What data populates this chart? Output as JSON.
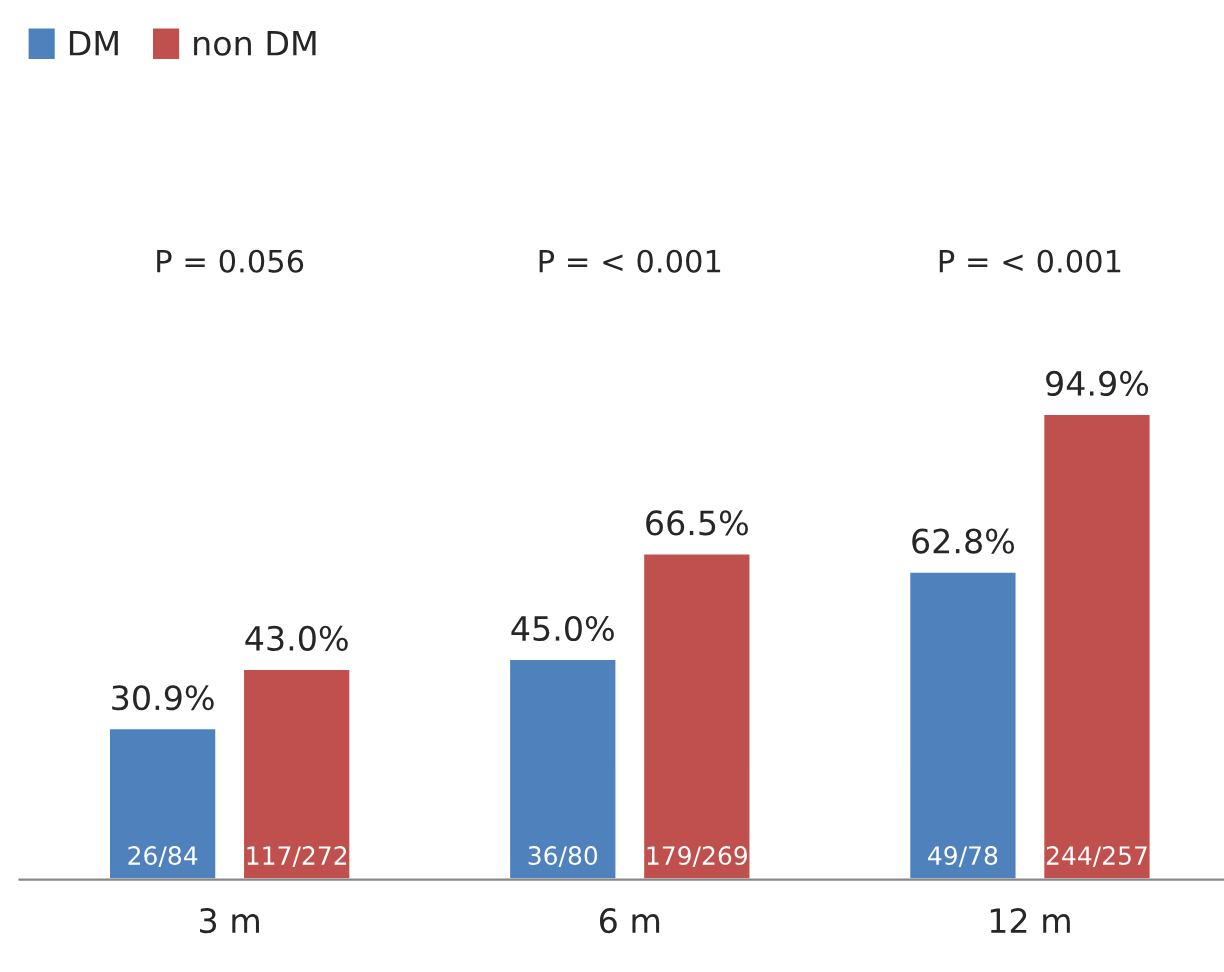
{
  "chart_data": {
    "type": "bar",
    "categories": [
      "3 m",
      "6 m",
      "12 m"
    ],
    "series": [
      {
        "name": "DM",
        "color": "#4f81bd",
        "values": [
          30.9,
          45.0,
          62.8
        ],
        "value_labels": [
          "30.9%",
          "45.0%",
          "62.8%"
        ]
      },
      {
        "name": "non DM",
        "color": "#c0504d",
        "values": [
          43.0,
          66.5,
          94.9
        ],
        "value_labels": [
          "43.0%",
          "66.5%",
          "94.9%"
        ]
      }
    ],
    "annotations": [
      "P = 0.056",
      "P = < 0.001",
      "P = < 0.001",
      "26/84",
      "36/80",
      "49/78",
      "117/272",
      "179/269",
      "244/257"
    ],
    "legend": "top left",
    "grid": false
  }
}
